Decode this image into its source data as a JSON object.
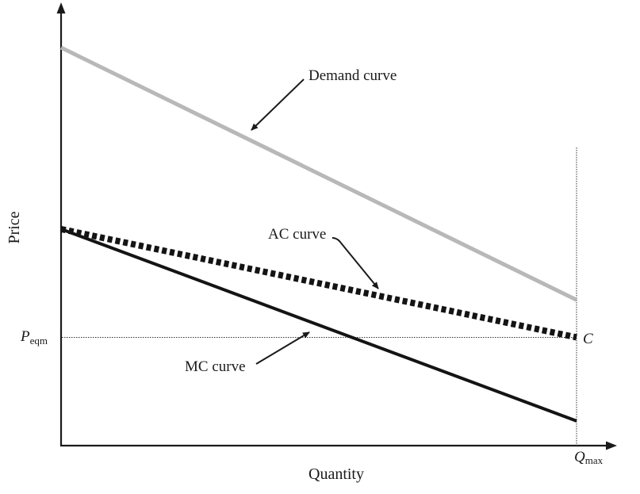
{
  "chart_data": {
    "type": "line",
    "title": "",
    "xlabel": "Quantity",
    "ylabel": "Price",
    "axes": {
      "x": {
        "label": "Quantity",
        "range": [
          0,
          1
        ]
      },
      "y": {
        "label": "Price",
        "range": [
          0,
          1
        ]
      }
    },
    "series": [
      {
        "name": "Demand curve",
        "x": [
          0,
          1
        ],
        "y": [
          1.0,
          0.366
        ],
        "color": "#b8b8b8",
        "style": "solid"
      },
      {
        "name": "AC curve",
        "x": [
          0,
          1
        ],
        "y": [
          0.544,
          0.272
        ],
        "color": "#141414",
        "style": "dotted"
      },
      {
        "name": "MC curve",
        "x": [
          0,
          1
        ],
        "y": [
          0.544,
          0.062
        ],
        "color": "#141414",
        "style": "solid"
      }
    ],
    "reference_lines": [
      {
        "orientation": "horizontal",
        "value": 0.272,
        "label_main": "P",
        "label_sub": "eqm",
        "style": "dotted"
      },
      {
        "orientation": "vertical",
        "value": 1,
        "label_main": "Q",
        "label_sub": "max",
        "style": "dotted"
      }
    ],
    "point_labels": [
      {
        "label": "C",
        "x": 1,
        "y": 0.272
      }
    ],
    "annotations": [
      {
        "text": "Demand curve",
        "points_to": "Demand curve"
      },
      {
        "text": "AC curve",
        "points_to": "AC curve"
      },
      {
        "text": "MC curve",
        "points_to": "MC curve"
      }
    ],
    "grid": false,
    "legend": "none"
  }
}
